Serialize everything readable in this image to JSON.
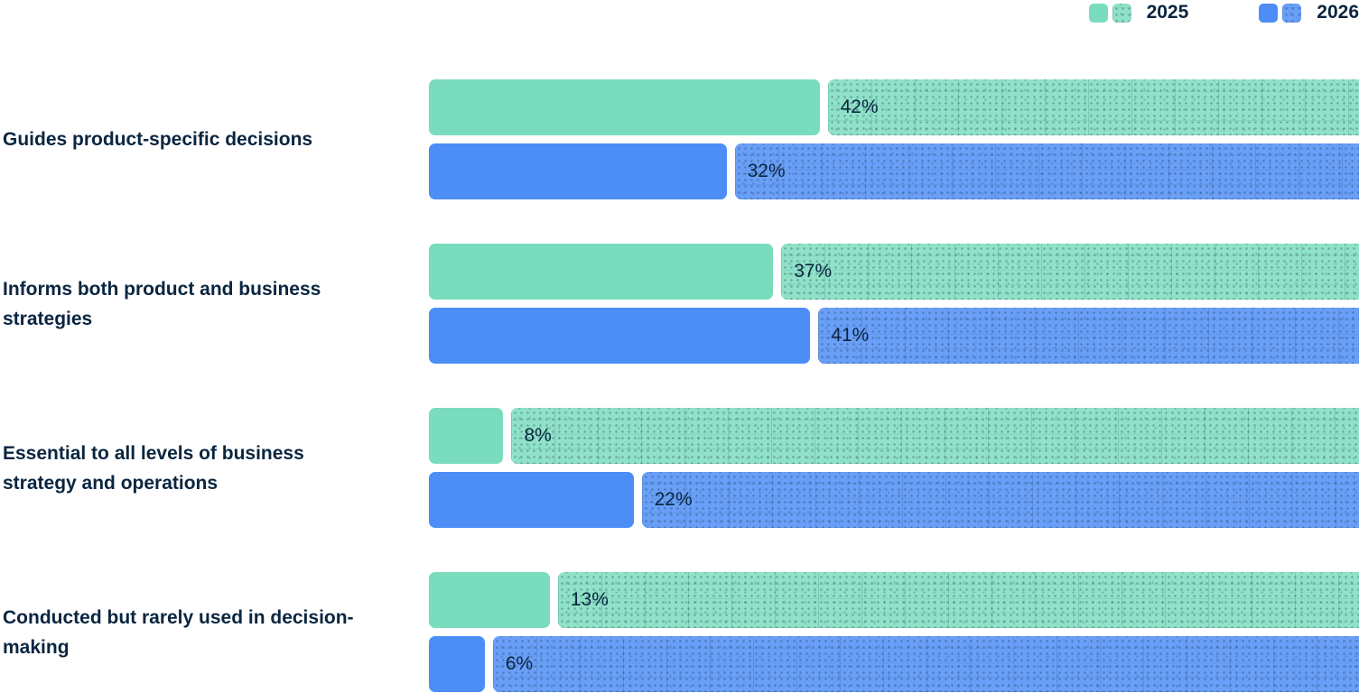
{
  "legend": [
    {
      "label": "2025",
      "color": "#7ADCBE"
    },
    {
      "label": "2026",
      "color": "#4C8DF6"
    }
  ],
  "colors": {
    "text": "#0A2540",
    "background": "#FFFFFF",
    "series_2025": "#7ADCBE",
    "series_2026": "#4C8DF6"
  },
  "chart_data": {
    "type": "bar",
    "orientation": "horizontal",
    "title": "",
    "xlabel": "",
    "ylabel": "",
    "xlim": [
      0,
      100
    ],
    "value_suffix": "%",
    "legend_position": "top-right",
    "bar_style": "solid value segment with rounded corners, then a hatched/stippled lighter segment of the same color filling the remainder to 100%; value label printed at the start of the hatched segment",
    "categories": [
      "Guides product-specific decisions",
      "Informs both product and business strategies",
      "Essential to all levels of business strategy and operations",
      "Conducted but rarely used in decision-making"
    ],
    "series": [
      {
        "name": "2025",
        "color": "#7ADCBE",
        "values": [
          42,
          37,
          8,
          13
        ]
      },
      {
        "name": "2026",
        "color": "#4C8DF6",
        "values": [
          32,
          41,
          22,
          6
        ]
      }
    ]
  }
}
